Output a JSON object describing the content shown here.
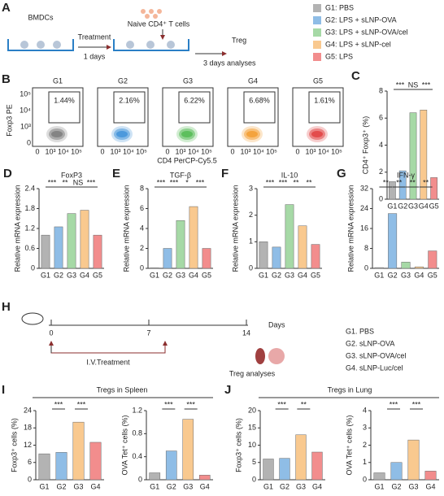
{
  "panels": {
    "A": {
      "label": "A",
      "start": "BMDCs",
      "step1": "Treatment",
      "step1_time": "1 days",
      "cells": "Naive CD4⁺ T cells",
      "step2": "Treg",
      "step2_time": "3 days analyses",
      "legend": [
        {
          "name": "G1: PBS",
          "color": "#b3b3b3"
        },
        {
          "name": "G2: LPS + sLNP-OVA",
          "color": "#8fbde6"
        },
        {
          "name": "G3: LPS + sLNP-OVA/cel",
          "color": "#a6d9a6"
        },
        {
          "name": "G4: LPS + sLNP-cel",
          "color": "#f9c98f"
        },
        {
          "name": "G5: LPS",
          "color": "#f28d8d"
        }
      ]
    },
    "B": {
      "label": "B",
      "ylabel": "Foxp3 PE",
      "xlabel": "CD4 PerCP-Cy5.5",
      "ticks": [
        "0",
        "10³",
        "10⁴",
        "10⁵"
      ],
      "plots": [
        {
          "name": "G1",
          "gate": "1.44%",
          "color": "#777777"
        },
        {
          "name": "G2",
          "gate": "2.16%",
          "color": "#3a8fd8"
        },
        {
          "name": "G3",
          "gate": "6.22%",
          "color": "#4cb84c"
        },
        {
          "name": "G4",
          "gate": "6.68%",
          "color": "#f39a2a"
        },
        {
          "name": "G5",
          "gate": "1.61%",
          "color": "#e03a3a"
        }
      ]
    },
    "H": {
      "label": "H",
      "days": [
        0,
        7,
        14
      ],
      "unit": "Days",
      "treatment": "I.V.Treatment",
      "analysis": "Treg analyses",
      "legend": [
        {
          "name": "G1. PBS",
          "color": "#333333"
        },
        {
          "name": "G2. sLNP-OVA",
          "color": "#3a7cc8"
        },
        {
          "name": "G3. sLNP-OVA/cel",
          "color": "#e8a020"
        },
        {
          "name": "G4. sLNP-Luc/cel",
          "color": "#d83030"
        }
      ]
    },
    "I": {
      "label": "I",
      "title": "Tregs in Spleen"
    },
    "J": {
      "label": "J",
      "title": "Tregs in Lung"
    }
  },
  "chart_data": [
    {
      "type": "bar",
      "label": "C",
      "ylabel": "CD4⁺ Foxp3⁺ (%)",
      "categories": [
        "G1",
        "G2",
        "G3",
        "G4",
        "G5"
      ],
      "values": [
        1.3,
        2.1,
        6.4,
        6.6,
        1.6
      ],
      "colors": [
        "#b3b3b3",
        "#8fbde6",
        "#a6d9a6",
        "#f9c98f",
        "#f28d8d"
      ],
      "ylim": [
        0,
        8
      ],
      "yticks": [
        0,
        2,
        4,
        6,
        8
      ],
      "annotations": [
        "***",
        "NS",
        "***"
      ]
    },
    {
      "type": "bar",
      "label": "D",
      "title": "FoxP3",
      "ylabel": "Relative mRNA expression",
      "categories": [
        "G1",
        "G2",
        "G3",
        "G4",
        "G5"
      ],
      "values": [
        1.0,
        1.25,
        1.65,
        1.75,
        1.0
      ],
      "colors": [
        "#b3b3b3",
        "#8fbde6",
        "#a6d9a6",
        "#f9c98f",
        "#f28d8d"
      ],
      "ylim": [
        0,
        2.4
      ],
      "yticks": [
        0,
        0.6,
        1.2,
        1.8,
        2.4
      ],
      "annotations": [
        "***",
        "**",
        "NS",
        "***"
      ]
    },
    {
      "type": "bar",
      "label": "E",
      "title": "TGF-β",
      "ylabel": "Relative mRNA expression",
      "categories": [
        "G1",
        "G2",
        "G3",
        "G4",
        "G5"
      ],
      "values": [
        0.05,
        2.0,
        4.8,
        6.2,
        2.0
      ],
      "colors": [
        "#b3b3b3",
        "#8fbde6",
        "#a6d9a6",
        "#f9c98f",
        "#f28d8d"
      ],
      "ylim": [
        0,
        8
      ],
      "yticks": [
        0,
        2,
        4,
        6,
        8
      ],
      "annotations": [
        "***",
        "***",
        "*",
        "***"
      ]
    },
    {
      "type": "bar",
      "label": "F",
      "title": "IL-10",
      "ylabel": "Relative mRNA expression",
      "categories": [
        "G1",
        "G2",
        "G3",
        "G4",
        "G5"
      ],
      "values": [
        1.0,
        0.8,
        2.4,
        1.6,
        0.9
      ],
      "colors": [
        "#b3b3b3",
        "#8fbde6",
        "#a6d9a6",
        "#f9c98f",
        "#f28d8d"
      ],
      "ylim": [
        0,
        3
      ],
      "yticks": [
        0,
        1,
        2,
        3
      ],
      "annotations": [
        "***",
        "***",
        "**",
        "**"
      ]
    },
    {
      "type": "bar",
      "label": "G",
      "title": "IFN-γ",
      "ylabel": "Relative mRNA expression",
      "categories": [
        "G1",
        "G2",
        "G3",
        "G4",
        "G5"
      ],
      "values": [
        0.3,
        22,
        2.5,
        0.6,
        7
      ],
      "colors": [
        "#b3b3b3",
        "#8fbde6",
        "#a6d9a6",
        "#f9c98f",
        "#f28d8d"
      ],
      "ylim": [
        0,
        32
      ],
      "yticks": [
        0,
        8,
        16,
        24,
        32
      ],
      "annotations": [
        "**",
        "**",
        "**",
        "**"
      ]
    },
    {
      "type": "bar",
      "ylabel": "Foxp3⁺ cells (%)",
      "categories": [
        "G1",
        "G2",
        "G3",
        "G4"
      ],
      "values": [
        9,
        9.5,
        20,
        13
      ],
      "colors": [
        "#b3b3b3",
        "#8fbde6",
        "#f9c98f",
        "#f28d8d"
      ],
      "ylim": [
        0,
        24
      ],
      "yticks": [
        0,
        6,
        12,
        18,
        24
      ],
      "annotations": [
        "***",
        "***"
      ]
    },
    {
      "type": "bar",
      "ylabel": "OVA Tet⁺ cells (%)",
      "categories": [
        "G1",
        "G2",
        "G3",
        "G4"
      ],
      "values": [
        0.12,
        0.5,
        1.05,
        0.08
      ],
      "colors": [
        "#b3b3b3",
        "#8fbde6",
        "#f9c98f",
        "#f28d8d"
      ],
      "ylim": [
        0,
        1.2
      ],
      "yticks": [
        0,
        0.4,
        0.8,
        1.2
      ],
      "annotations": [
        "***",
        "***"
      ]
    },
    {
      "type": "bar",
      "ylabel": "Foxp3⁺ cells (%)",
      "categories": [
        "G1",
        "G2",
        "G3",
        "G4"
      ],
      "values": [
        6,
        6.2,
        13,
        8
      ],
      "colors": [
        "#b3b3b3",
        "#8fbde6",
        "#f9c98f",
        "#f28d8d"
      ],
      "ylim": [
        0,
        20
      ],
      "yticks": [
        0,
        5,
        10,
        15,
        20
      ],
      "annotations": [
        "***",
        "**"
      ]
    },
    {
      "type": "bar",
      "ylabel": "OVA Tet⁺ cells (%)",
      "categories": [
        "G1",
        "G2",
        "G3",
        "G4"
      ],
      "values": [
        0.4,
        1.0,
        2.3,
        0.5
      ],
      "colors": [
        "#b3b3b3",
        "#8fbde6",
        "#f9c98f",
        "#f28d8d"
      ],
      "ylim": [
        0,
        4
      ],
      "yticks": [
        0,
        1,
        2,
        3,
        4
      ],
      "annotations": [
        "***",
        "***"
      ]
    }
  ]
}
